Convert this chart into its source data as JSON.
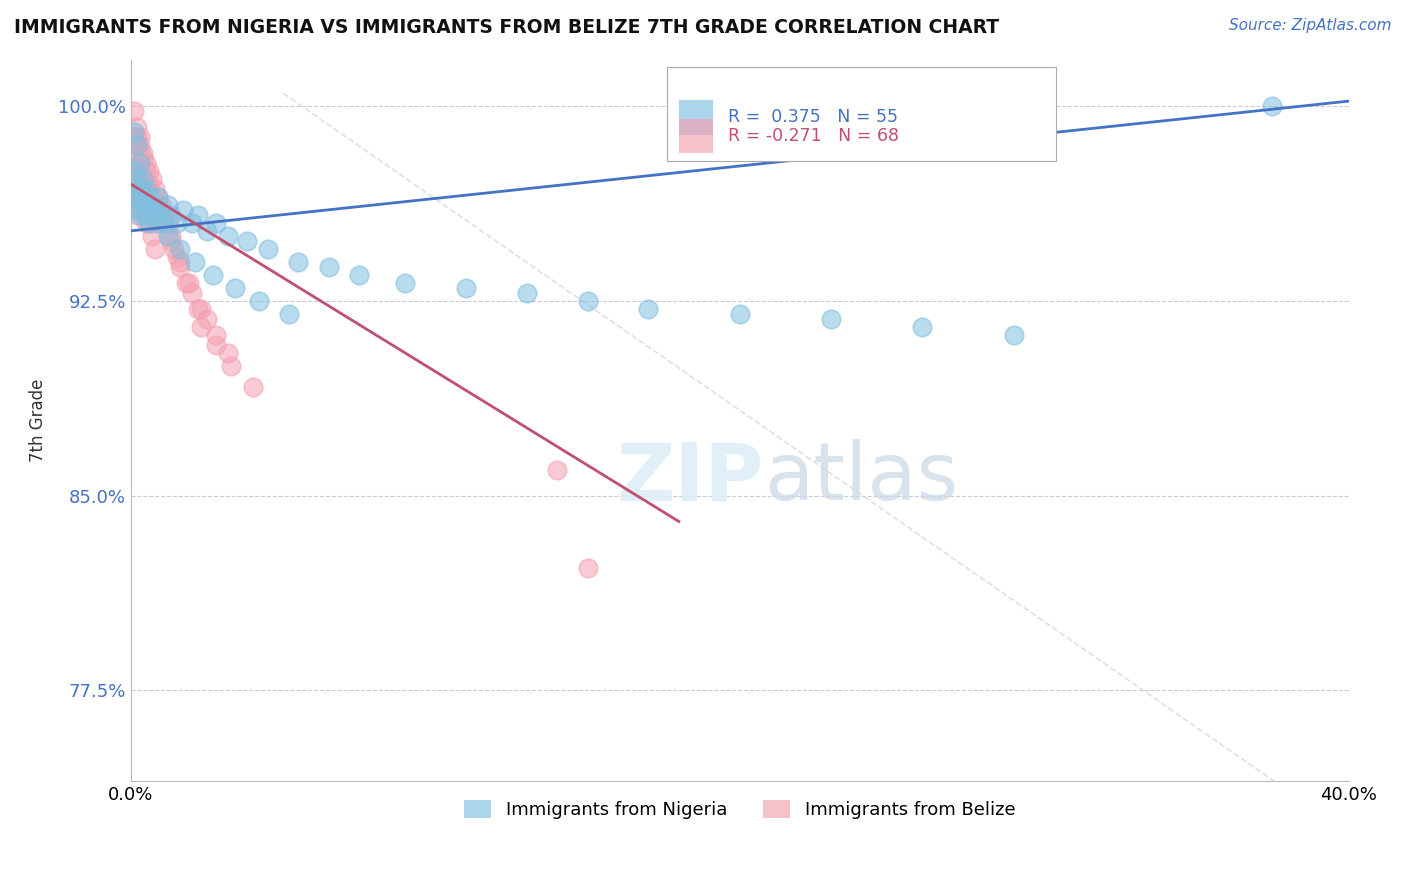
{
  "title": "IMMIGRANTS FROM NIGERIA VS IMMIGRANTS FROM BELIZE 7TH GRADE CORRELATION CHART",
  "source": "Source: ZipAtlas.com",
  "ylabel": "7th Grade",
  "xlim": [
    0.0,
    0.4
  ],
  "ylim": [
    0.74,
    1.018
  ],
  "nigeria_color": "#7fbfdf",
  "belize_color": "#f4a0b0",
  "trend_nigeria_color": "#4472c4",
  "trend_belize_color": "#c05070",
  "watermark_color": "#d8d8d8",
  "grid_color": "#cccccc",
  "background_color": "#ffffff",
  "nigeria_R": 0.375,
  "nigeria_N": 55,
  "belize_R": -0.271,
  "belize_N": 68,
  "nigeria_trend_x0": 0.0,
  "nigeria_trend_y0": 0.952,
  "nigeria_trend_x1": 0.4,
  "nigeria_trend_y1": 1.002,
  "belize_trend_x0": 0.0,
  "belize_trend_y0": 0.97,
  "belize_trend_x1": 0.18,
  "belize_trend_y1": 0.84,
  "nigeria_x": [
    0.001,
    0.001,
    0.001,
    0.002,
    0.002,
    0.002,
    0.003,
    0.003,
    0.003,
    0.004,
    0.004,
    0.005,
    0.005,
    0.006,
    0.006,
    0.007,
    0.008,
    0.009,
    0.01,
    0.011,
    0.012,
    0.013,
    0.015,
    0.017,
    0.02,
    0.022,
    0.025,
    0.028,
    0.032,
    0.038,
    0.045,
    0.055,
    0.065,
    0.075,
    0.09,
    0.11,
    0.13,
    0.15,
    0.17,
    0.2,
    0.23,
    0.26,
    0.29,
    0.003,
    0.005,
    0.007,
    0.009,
    0.012,
    0.016,
    0.021,
    0.027,
    0.034,
    0.042,
    0.052,
    0.375
  ],
  "nigeria_y": [
    0.99,
    0.975,
    0.965,
    0.985,
    0.972,
    0.96,
    0.978,
    0.965,
    0.958,
    0.972,
    0.962,
    0.968,
    0.958,
    0.965,
    0.955,
    0.962,
    0.958,
    0.965,
    0.96,
    0.955,
    0.962,
    0.958,
    0.955,
    0.96,
    0.955,
    0.958,
    0.952,
    0.955,
    0.95,
    0.948,
    0.945,
    0.94,
    0.938,
    0.935,
    0.932,
    0.93,
    0.928,
    0.925,
    0.922,
    0.92,
    0.918,
    0.915,
    0.912,
    0.968,
    0.962,
    0.958,
    0.955,
    0.95,
    0.945,
    0.94,
    0.935,
    0.93,
    0.925,
    0.92,
    1.0
  ],
  "belize_x": [
    0.001,
    0.001,
    0.001,
    0.001,
    0.002,
    0.002,
    0.002,
    0.002,
    0.002,
    0.003,
    0.003,
    0.003,
    0.003,
    0.004,
    0.004,
    0.004,
    0.005,
    0.005,
    0.005,
    0.005,
    0.006,
    0.006,
    0.006,
    0.007,
    0.007,
    0.008,
    0.008,
    0.009,
    0.009,
    0.01,
    0.011,
    0.012,
    0.013,
    0.014,
    0.015,
    0.016,
    0.018,
    0.02,
    0.022,
    0.025,
    0.028,
    0.032,
    0.001,
    0.002,
    0.003,
    0.004,
    0.005,
    0.006,
    0.007,
    0.008,
    0.003,
    0.004,
    0.005,
    0.006,
    0.009,
    0.011,
    0.013,
    0.016,
    0.019,
    0.023,
    0.14,
    0.15,
    0.023,
    0.028,
    0.033,
    0.04,
    0.002,
    0.003
  ],
  "belize_y": [
    0.998,
    0.988,
    0.978,
    0.968,
    0.992,
    0.985,
    0.975,
    0.965,
    0.958,
    0.988,
    0.978,
    0.968,
    0.96,
    0.982,
    0.972,
    0.962,
    0.978,
    0.97,
    0.962,
    0.955,
    0.975,
    0.968,
    0.958,
    0.972,
    0.962,
    0.968,
    0.958,
    0.965,
    0.955,
    0.962,
    0.958,
    0.955,
    0.95,
    0.945,
    0.942,
    0.938,
    0.932,
    0.928,
    0.922,
    0.918,
    0.912,
    0.905,
    0.972,
    0.968,
    0.965,
    0.962,
    0.958,
    0.955,
    0.95,
    0.945,
    0.985,
    0.98,
    0.975,
    0.97,
    0.96,
    0.955,
    0.948,
    0.94,
    0.932,
    0.922,
    0.86,
    0.822,
    0.915,
    0.908,
    0.9,
    0.892,
    0.988,
    0.982
  ]
}
